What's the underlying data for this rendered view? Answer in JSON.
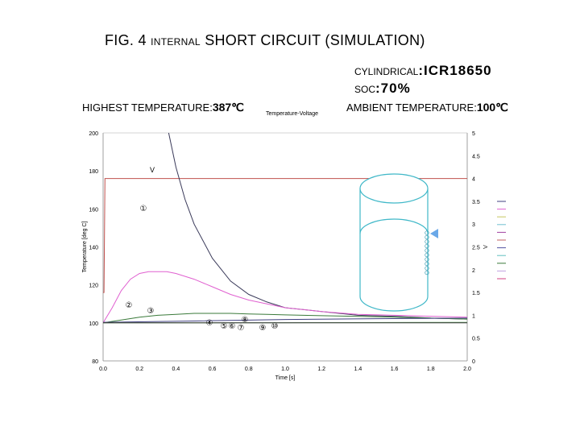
{
  "header": {
    "title_prefix": "FIG. 4",
    "title_small": "INTERNAL",
    "title_rest": "SHORT CIRCUIT (SIMULATION)",
    "cylindrical_label": "CYLINDRICAL",
    "cylindrical_value": ":ICR18650",
    "soc_label": "SOC",
    "soc_value": ":70%",
    "highest_temp_label": "HIGHEST TEMPERATURE:",
    "highest_temp_value": "387℃",
    "ambient_temp_label": "AMBIENT TEMPERATURE:",
    "ambient_temp_value": "100℃"
  },
  "chart_data": {
    "type": "line",
    "title": "Temperature-Voltage",
    "xlabel": "Time [s]",
    "ylabel": "Temperature [deg C]",
    "y2label": "V",
    "xlim": [
      0,
      2
    ],
    "ylim": [
      80,
      200
    ],
    "y2lim": [
      0,
      5
    ],
    "x_ticks": [
      "0.0",
      "0.2",
      "0.4",
      "0.6",
      "0.8",
      "1.0",
      "1.2",
      "1.4",
      "1.6",
      "1.8",
      "2.0"
    ],
    "y_ticks": [
      "80",
      "100",
      "120",
      "140",
      "160",
      "180",
      "200"
    ],
    "y2_ticks": [
      "0",
      "0.5",
      "1",
      "1.5",
      "2",
      "2.5",
      "3",
      "3.5",
      "4",
      "4.5",
      "5"
    ],
    "grid": false,
    "legend_position": "right",
    "series": [
      {
        "color": "#c0504d",
        "axis": "y2",
        "x": [
          0,
          0.005,
          0.01,
          0.02,
          2.0
        ],
        "y": [
          1.5,
          1.5,
          4.0,
          4.0,
          4.0
        ]
      },
      {
        "color": "#3a3a5a",
        "axis": "y",
        "x": [
          0.36,
          0.4,
          0.45,
          0.5,
          0.6,
          0.7,
          0.8,
          0.9,
          1.0,
          1.2,
          1.4,
          1.6,
          1.8,
          2.0
        ],
        "y": [
          200,
          182,
          165,
          152,
          134,
          122,
          115,
          111,
          108,
          106,
          104,
          103.5,
          102.5,
          102
        ]
      },
      {
        "color": "#e060d0",
        "axis": "y",
        "x": [
          0,
          0.05,
          0.1,
          0.15,
          0.2,
          0.25,
          0.3,
          0.35,
          0.4,
          0.5,
          0.6,
          0.7,
          0.8,
          0.9,
          1.0,
          1.2,
          1.4,
          1.6,
          1.8,
          2.0
        ],
        "y": [
          100,
          108,
          117,
          123,
          126,
          127,
          127,
          127,
          126,
          123,
          119,
          115,
          112,
          110,
          108,
          106,
          104.5,
          104,
          103.5,
          103
        ]
      },
      {
        "color": "#3a7a3a",
        "axis": "y",
        "x": [
          0,
          0.1,
          0.2,
          0.3,
          0.4,
          0.5,
          0.6,
          0.7,
          0.8,
          0.9,
          1.0,
          1.2,
          1.4,
          1.6,
          1.8,
          2.0
        ],
        "y": [
          100,
          101.5,
          103,
          104,
          104.5,
          105,
          105,
          105,
          104.7,
          104.5,
          104.2,
          103.8,
          103.4,
          103,
          102.5,
          102
        ]
      },
      {
        "color": "#404080",
        "axis": "y",
        "x": [
          0,
          0.5,
          1.0,
          1.5,
          2.0
        ],
        "y": [
          100.3,
          101,
          101.8,
          102.2,
          102.5
        ]
      },
      {
        "color": "#70b070",
        "axis": "y",
        "x": [
          0,
          0.5,
          1.0,
          1.5,
          2.0
        ],
        "y": [
          100,
          100,
          100.1,
          100.2,
          100.3
        ]
      },
      {
        "color": "#333333",
        "axis": "y",
        "x": [
          0,
          2.0
        ],
        "y": [
          100,
          100
        ]
      }
    ],
    "legend_colors": [
      "#404080",
      "#e060d0",
      "#c8c860",
      "#70c0d0",
      "#a040a0",
      "#c06060",
      "#5050a0",
      "#60c0c0",
      "#3a7a3a",
      "#c0a0e0",
      "#d04080"
    ],
    "annotations": {
      "v_label": "V",
      "markers": [
        "①",
        "②",
        "③",
        "④",
        "⑤",
        "⑥",
        "⑦",
        "⑧",
        "⑨",
        "⑩"
      ]
    }
  }
}
